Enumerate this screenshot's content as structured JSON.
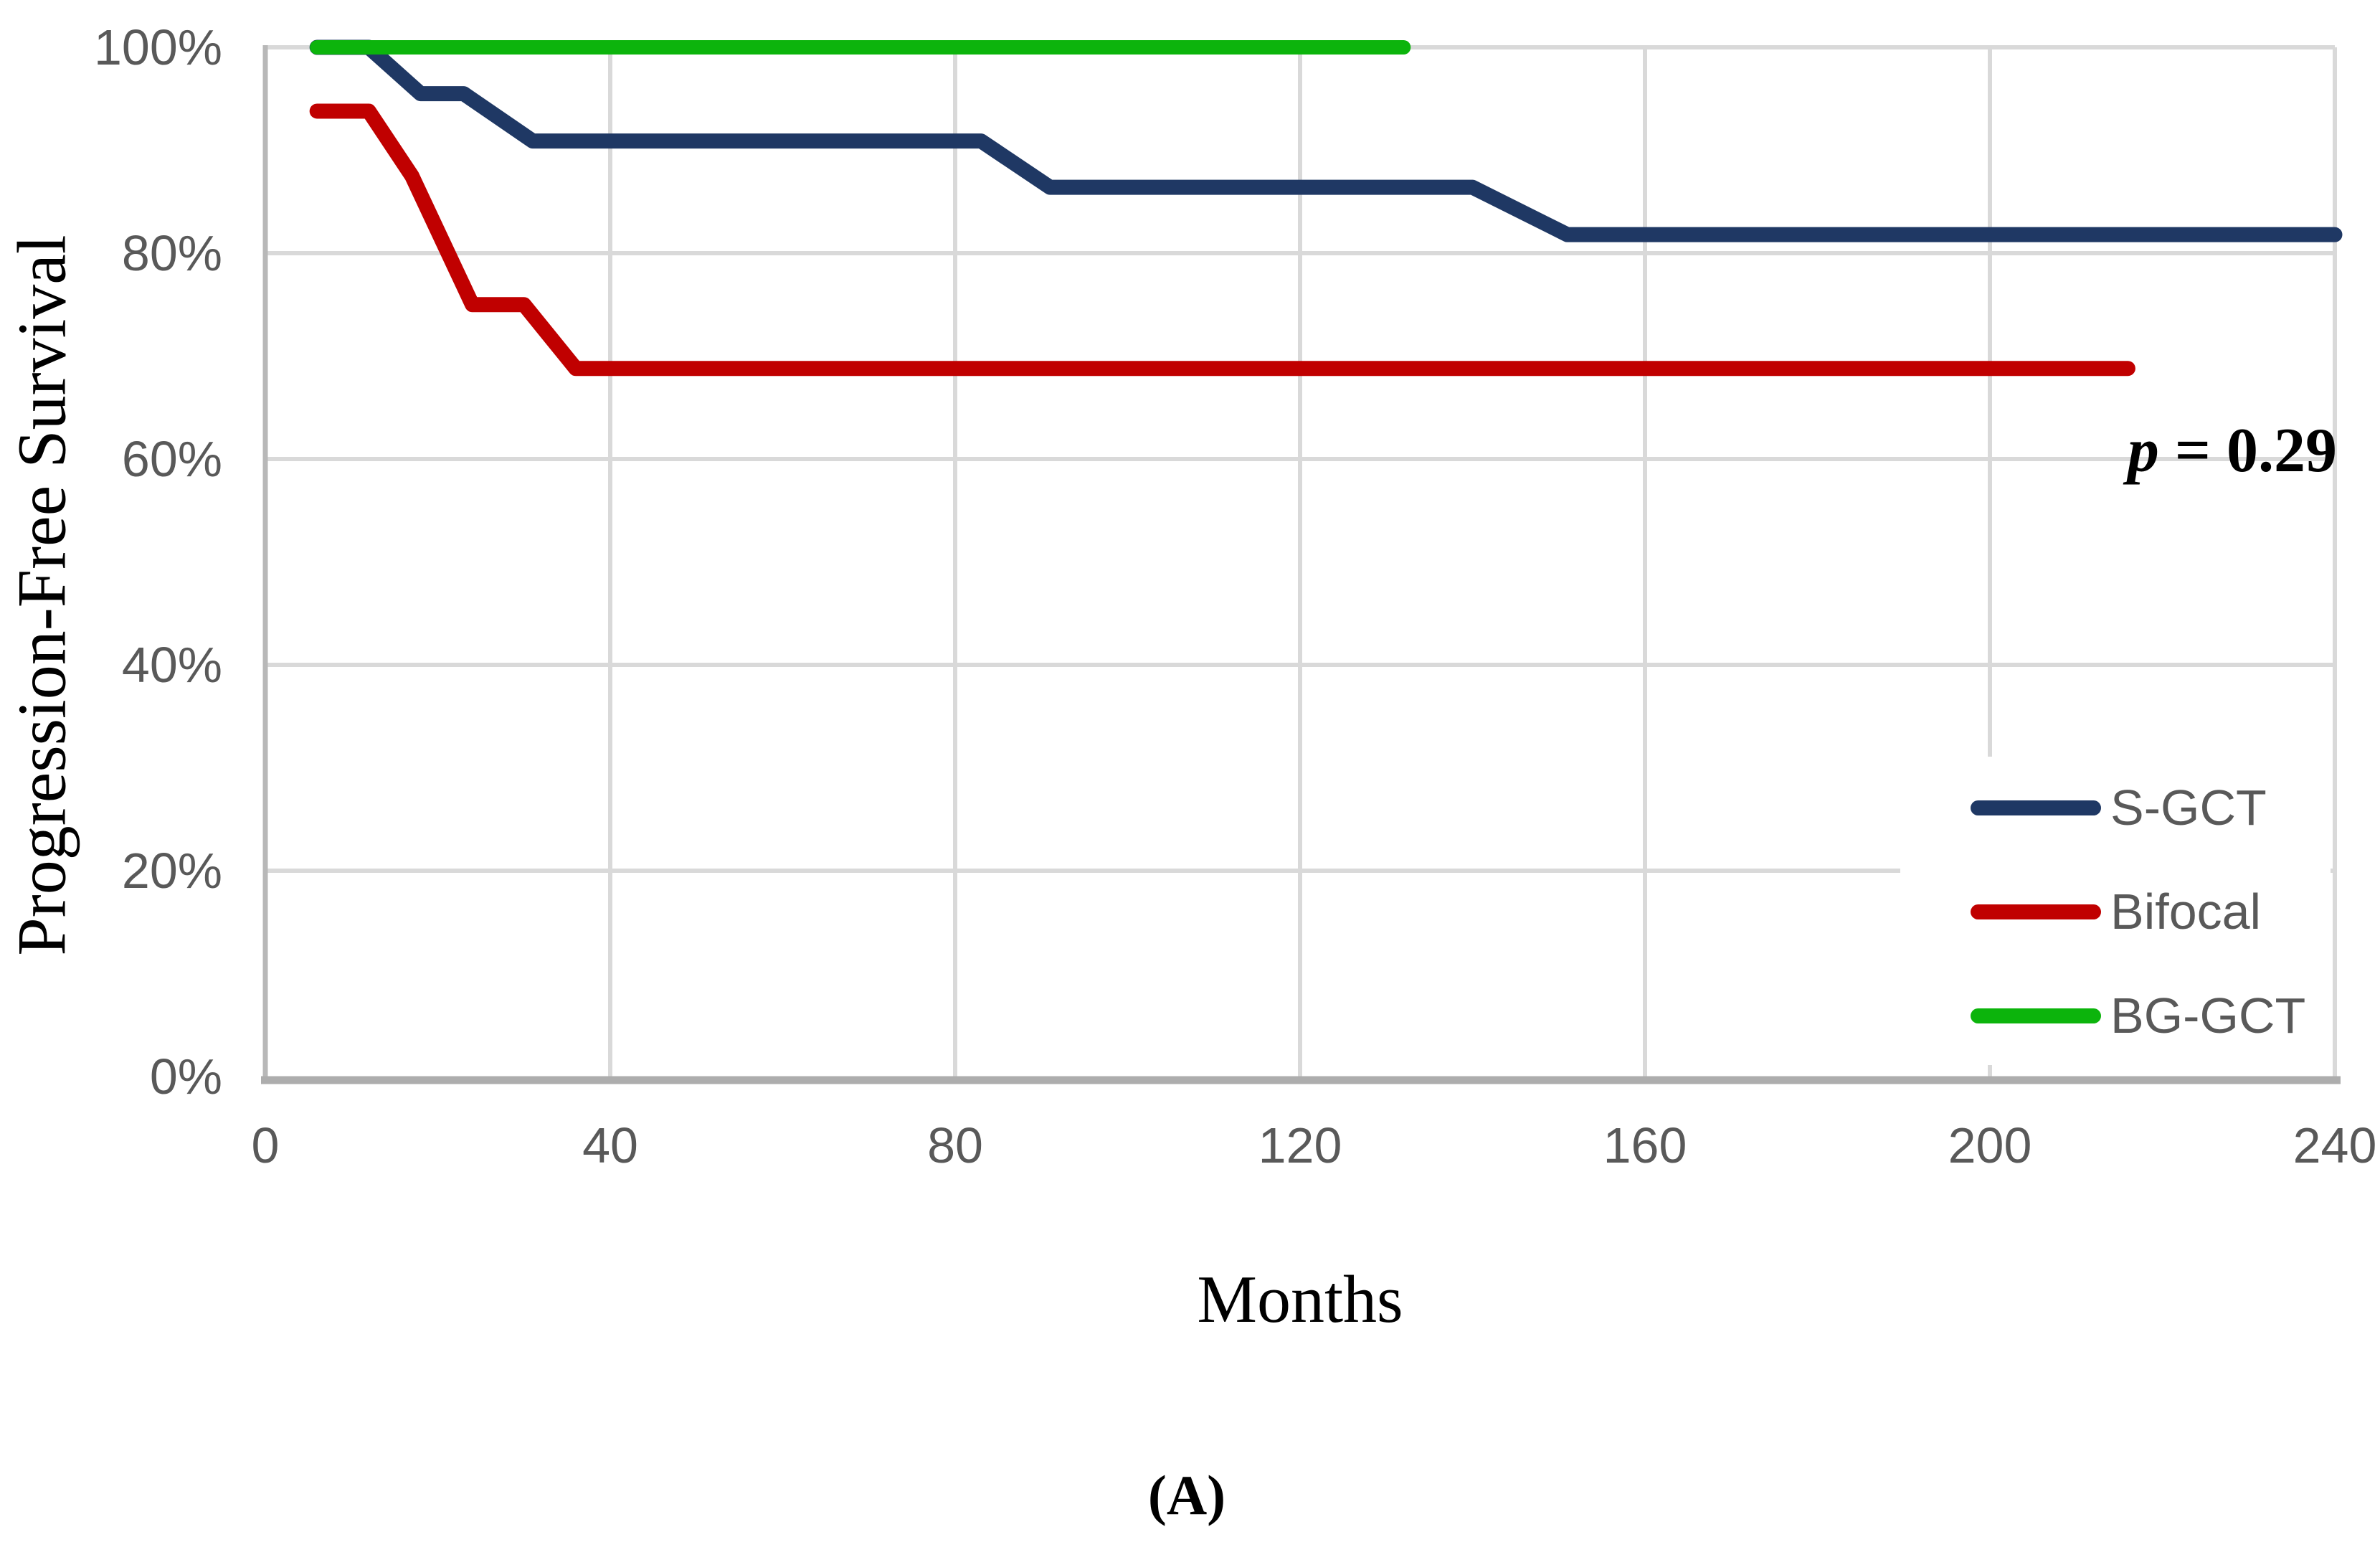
{
  "figure": {
    "y_axis_title": "Progression-Free Survival",
    "x_axis_title": "Months",
    "panel_label": "(A)",
    "p_value_symbol": "p",
    "p_value_rest": "= 0.29"
  },
  "colors": {
    "gridline": "#D9D9D9",
    "axis_line": "#ADADAD",
    "tick_text": "#595959",
    "annotation_text": "#000000",
    "background": "#FFFFFF"
  },
  "chart_data": {
    "type": "line",
    "subtype": "kaplan-meier-step-survival",
    "title": "",
    "xlabel": "Months",
    "ylabel": "Progression-Free Survival",
    "xlim": [
      0,
      240
    ],
    "ylim": [
      0,
      100
    ],
    "grid": true,
    "legend_position": "middle-right",
    "annotation": "p = 0.29",
    "x_ticks": [
      0,
      40,
      80,
      120,
      160,
      200,
      240
    ],
    "x_tick_labels": [
      "0",
      "40",
      "80",
      "120",
      "160",
      "200",
      "240"
    ],
    "y_ticks": [
      0,
      20,
      40,
      60,
      80,
      100
    ],
    "y_tick_labels": [
      "0%",
      "20%",
      "40%",
      "60%",
      "80%",
      "100%"
    ],
    "series": [
      {
        "name": "S-GCT",
        "color": "#1F3864",
        "stroke_width": 21,
        "x": [
          6,
          12,
          18,
          23,
          31,
          83,
          91,
          140,
          151,
          240
        ],
        "y": [
          100,
          100,
          95.5,
          95.5,
          90.9,
          90.9,
          86.4,
          86.4,
          81.8,
          81.8
        ]
      },
      {
        "name": "Bifocal",
        "color": "#C00000",
        "stroke_width": 21,
        "x": [
          6,
          12,
          17,
          24,
          30,
          36,
          216
        ],
        "y": [
          93.8,
          93.8,
          87.5,
          75,
          75,
          68.8,
          68.8
        ]
      },
      {
        "name": "BG-GCT",
        "color": "#0CB40C",
        "stroke_width": 20,
        "x": [
          6,
          132
        ],
        "y": [
          100,
          100
        ]
      }
    ]
  }
}
